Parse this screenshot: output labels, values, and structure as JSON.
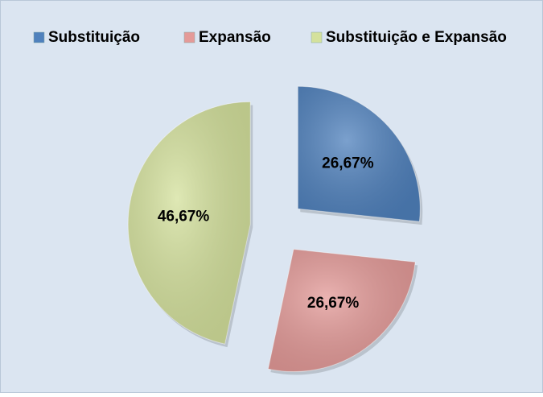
{
  "chart_data": {
    "type": "pie",
    "categories": [
      "Substituição",
      "Expansão",
      "Substituição e Expansão"
    ],
    "values": [
      26.67,
      26.67,
      46.67
    ],
    "value_labels": [
      "26,67%",
      "26,67%",
      "46,67%"
    ],
    "colors": [
      "#4f81bd",
      "#e49a98",
      "#d4e19c"
    ],
    "legend": "top"
  }
}
